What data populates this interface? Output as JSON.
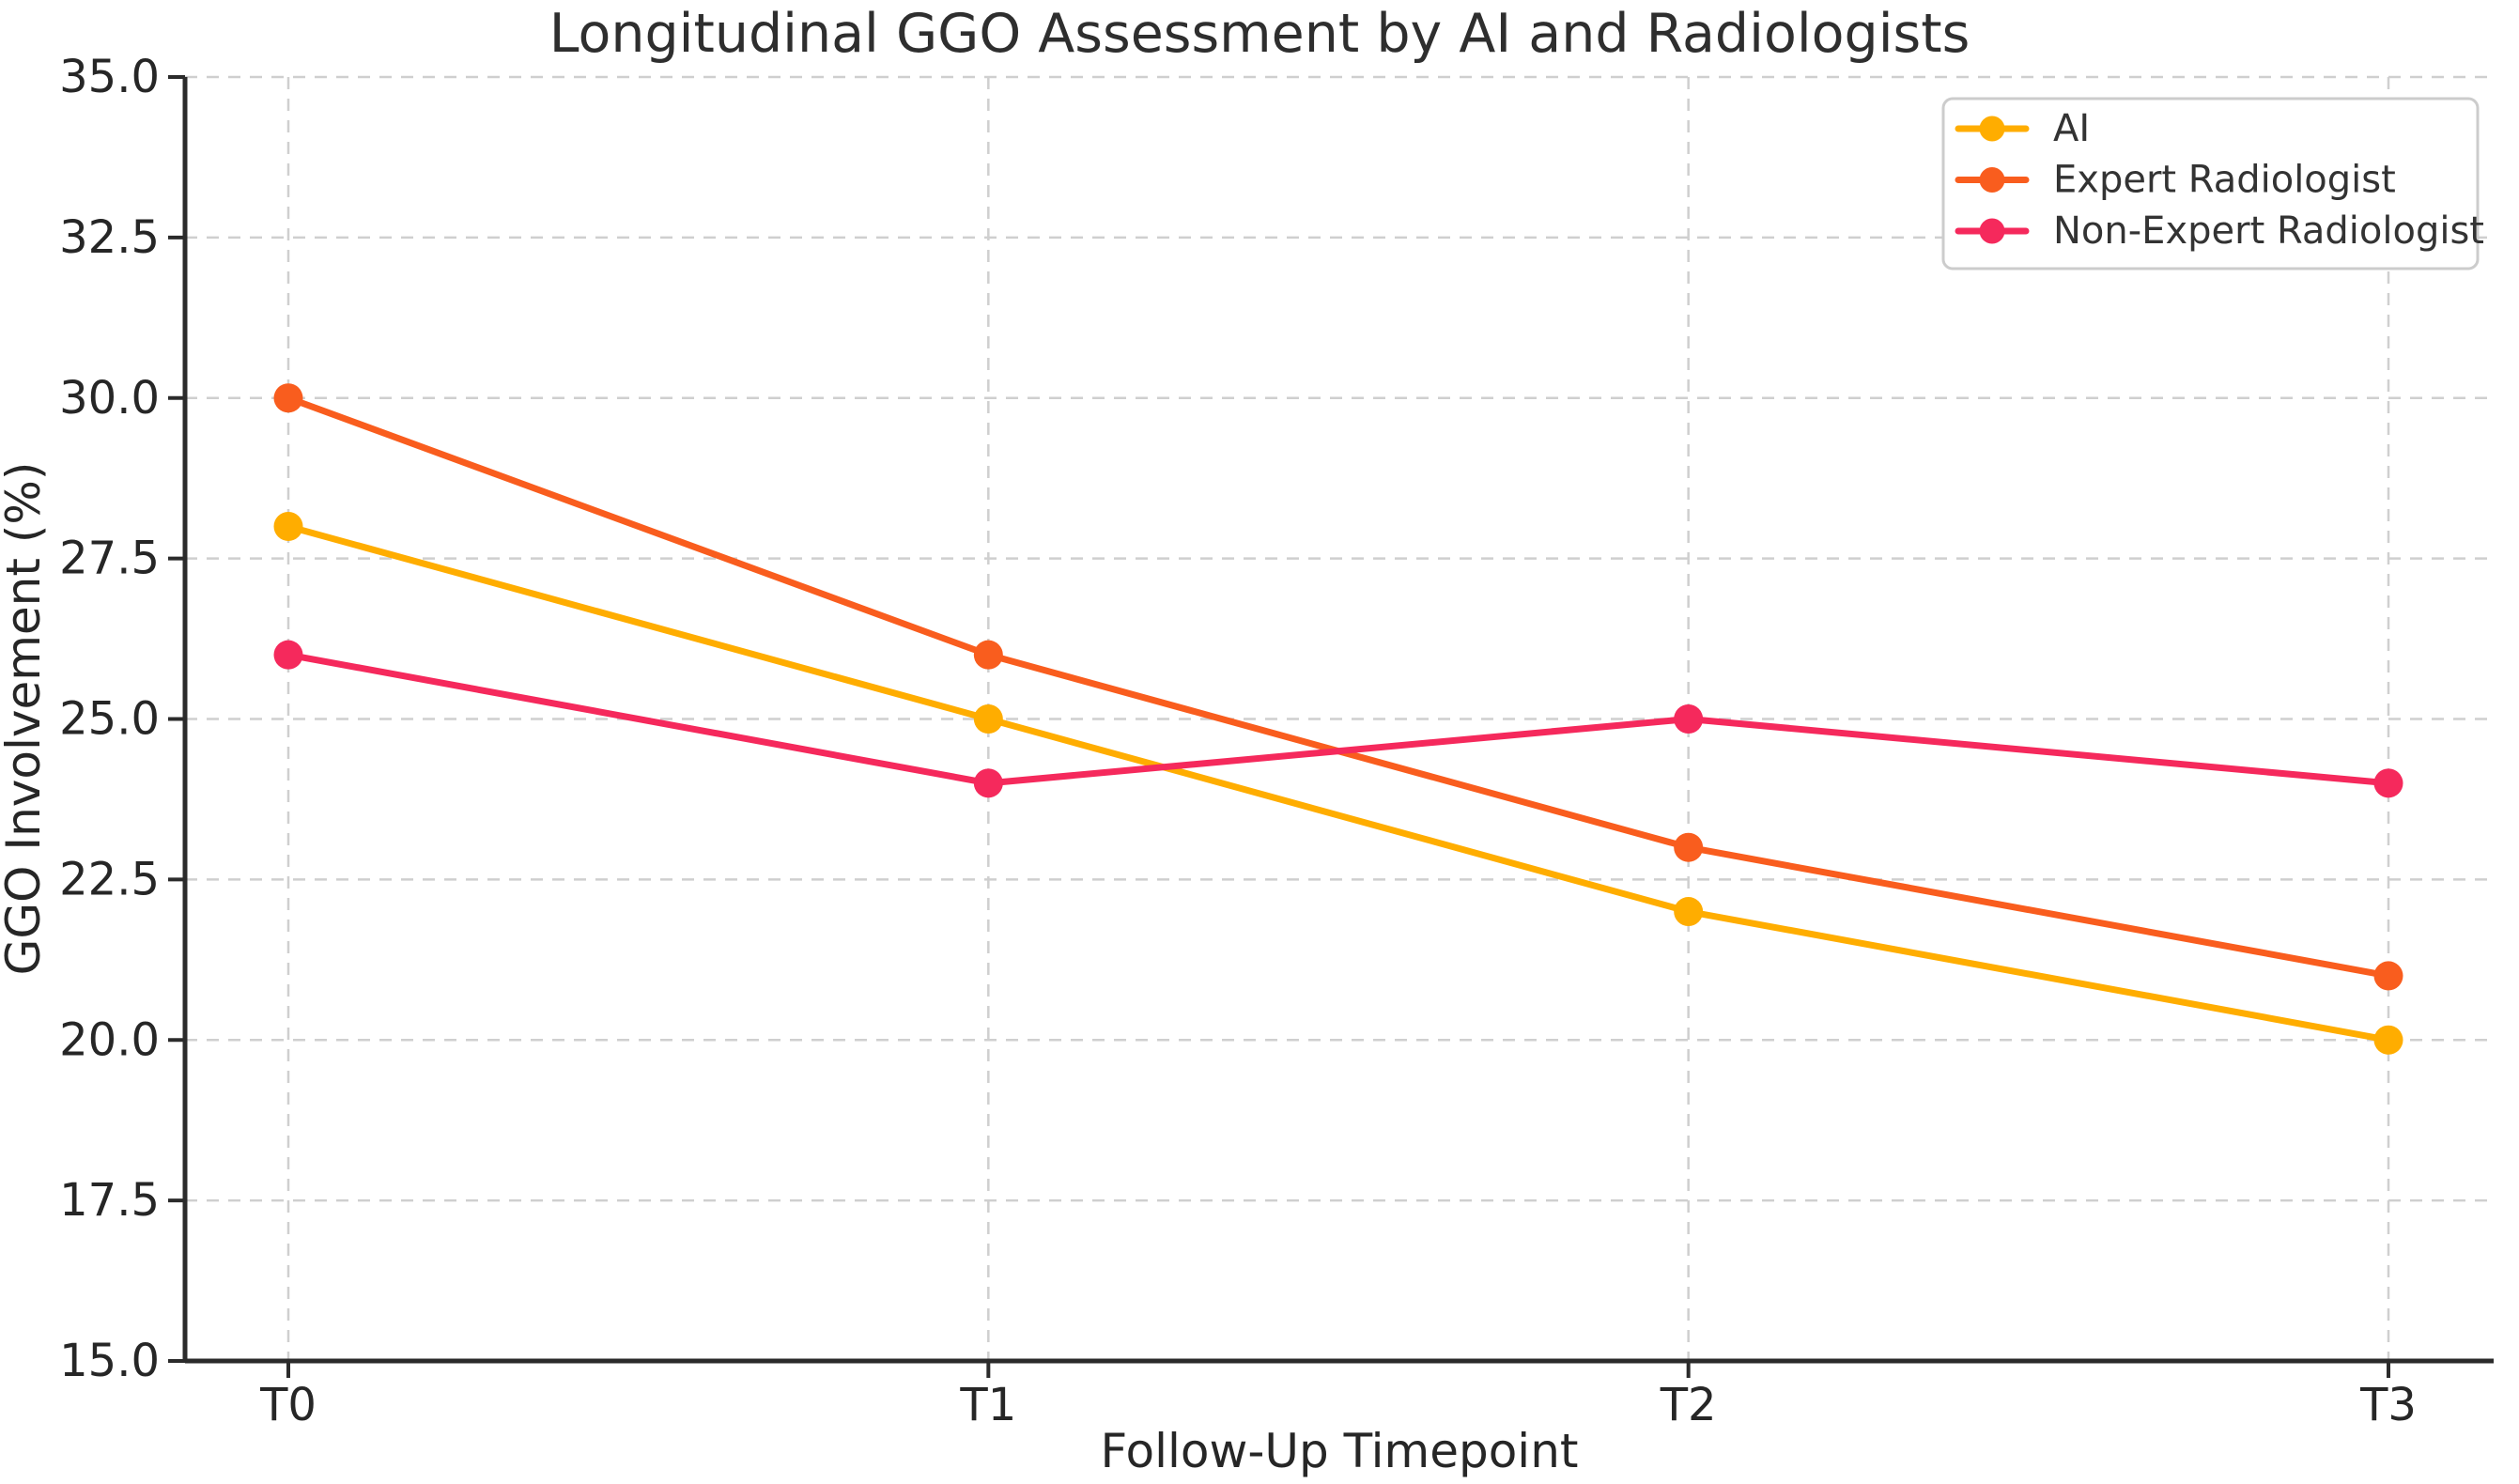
{
  "chart_data": {
    "type": "line",
    "title": "Longitudinal GGO Assessment by AI and Radiologists",
    "xlabel": "Follow-Up Timepoint",
    "ylabel": "GGO Involvement (%)",
    "categories": [
      "T0",
      "T1",
      "T2",
      "T3"
    ],
    "series": [
      {
        "name": "AI",
        "color": "#FFAD00",
        "values": [
          28,
          25,
          22,
          20
        ]
      },
      {
        "name": "Expert Radiologist",
        "color": "#F95D1E",
        "values": [
          30,
          26,
          23,
          21
        ]
      },
      {
        "name": "Non-Expert Radiologist",
        "color": "#F5295C",
        "values": [
          26,
          24,
          25,
          24
        ]
      }
    ],
    "ylim": [
      15,
      35
    ],
    "ytick_values": [
      15,
      17.5,
      20,
      22.5,
      25,
      27.5,
      30,
      32.5,
      35
    ],
    "ytick_labels": [
      "15.0",
      "17.5",
      "20.0",
      "22.5",
      "25.0",
      "27.5",
      "30.0",
      "32.5",
      "35.0"
    ],
    "grid": {
      "show": true,
      "style": "dashed",
      "color": "#CFCFCF",
      "horizontal": true,
      "vertical": true
    },
    "legend": {
      "position": "upper right",
      "border_color": "#CCCCCC",
      "background": "#FFFFFF",
      "labels": [
        "AI",
        "Expert Radiologist",
        "Non-Expert Radiologist"
      ]
    },
    "marker": "circle",
    "axis_color": "#2B2B2B",
    "text_color": "#262626"
  }
}
